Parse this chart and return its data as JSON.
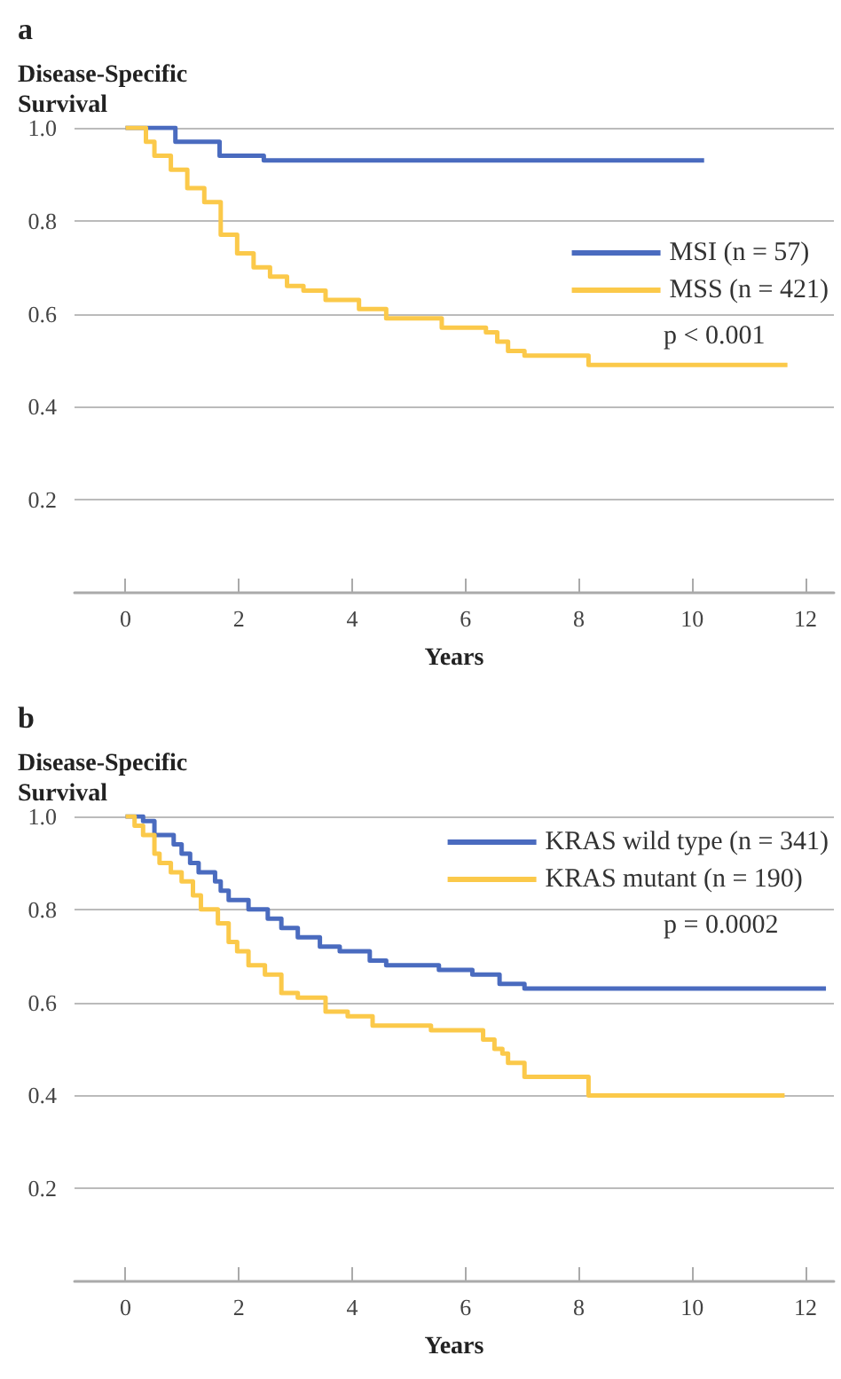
{
  "chart_data": [
    {
      "type": "step",
      "title": "a",
      "ylabel": "Disease-Specific\nSurvival",
      "xlabel": "Years",
      "xlim": [
        -0.9,
        12.5
      ],
      "xticks": [
        0,
        2,
        4,
        6,
        8,
        10,
        12
      ],
      "ylim": [
        0,
        1
      ],
      "yticks": [
        0.2,
        0.4,
        0.6,
        0.8,
        {
          "value": 1,
          "label": "1.0"
        }
      ],
      "grid": "y",
      "legend": "right",
      "marker": "none",
      "annotations": [
        "p < 0.001"
      ],
      "series": [
        {
          "name": "MSI (n = 57)",
          "color": "#4a6bbf",
          "x": [
            0,
            0.88,
            1.66,
            2.44,
            10.21
          ],
          "values": [
            1,
            0.97,
            0.94,
            0.93,
            0.93
          ]
        },
        {
          "name": "MSS (n = 421)",
          "color": "#fbc94a",
          "x": [
            0,
            0.36,
            0.51,
            0.8,
            1.09,
            1.39,
            1.68,
            1.97,
            2.26,
            2.55,
            2.85,
            3.14,
            3.53,
            4.12,
            4.6,
            5.58,
            6.36,
            6.56,
            6.75,
            7.04,
            8.17,
            11.68
          ],
          "values": [
            1,
            0.97,
            0.94,
            0.91,
            0.87,
            0.84,
            0.77,
            0.73,
            0.7,
            0.68,
            0.66,
            0.65,
            0.63,
            0.61,
            0.59,
            0.57,
            0.56,
            0.54,
            0.52,
            0.51,
            0.49,
            0.49
          ]
        }
      ]
    },
    {
      "type": "step",
      "title": "b",
      "ylabel": "Disease-Specific\nSurvival",
      "xlabel": "Years",
      "xlim": [
        -0.9,
        12.5
      ],
      "xticks": [
        0,
        2,
        4,
        6,
        8,
        10,
        12
      ],
      "ylim": [
        0,
        1
      ],
      "yticks": [
        0.2,
        0.4,
        0.6,
        0.8,
        {
          "value": 1,
          "label": "1.0"
        }
      ],
      "grid": "y",
      "legend": "top right",
      "marker": "none",
      "annotations": [
        "p = 0.0002"
      ],
      "series": [
        {
          "name": "KRAS wild type (n = 341)",
          "color": "#4a6bbf",
          "x": [
            0,
            0.31,
            0.51,
            0.85,
            0.99,
            1.14,
            1.29,
            1.58,
            1.68,
            1.82,
            2.17,
            2.51,
            2.75,
            3.04,
            3.43,
            3.78,
            4.31,
            4.6,
            5.53,
            6.12,
            6.6,
            7.04,
            12.36
          ],
          "values": [
            1,
            0.99,
            0.96,
            0.94,
            0.92,
            0.9,
            0.88,
            0.86,
            0.84,
            0.82,
            0.8,
            0.78,
            0.76,
            0.74,
            0.72,
            0.71,
            0.69,
            0.68,
            0.67,
            0.66,
            0.64,
            0.63,
            0.63
          ]
        },
        {
          "name": "KRAS mutant (n = 190)",
          "color": "#fbc94a",
          "x": [
            0,
            0.16,
            0.31,
            0.51,
            0.6,
            0.8,
            0.99,
            1.19,
            1.33,
            1.63,
            1.82,
            1.97,
            2.17,
            2.46,
            2.75,
            3.04,
            3.53,
            3.92,
            4.36,
            5.39,
            6.31,
            6.51,
            6.65,
            6.75,
            7.04,
            8.17,
            11.63
          ],
          "values": [
            1,
            0.98,
            0.96,
            0.92,
            0.9,
            0.88,
            0.86,
            0.83,
            0.8,
            0.77,
            0.73,
            0.71,
            0.68,
            0.66,
            0.62,
            0.61,
            0.58,
            0.57,
            0.55,
            0.54,
            0.52,
            0.5,
            0.49,
            0.47,
            0.44,
            0.4,
            0.4
          ]
        }
      ]
    }
  ]
}
